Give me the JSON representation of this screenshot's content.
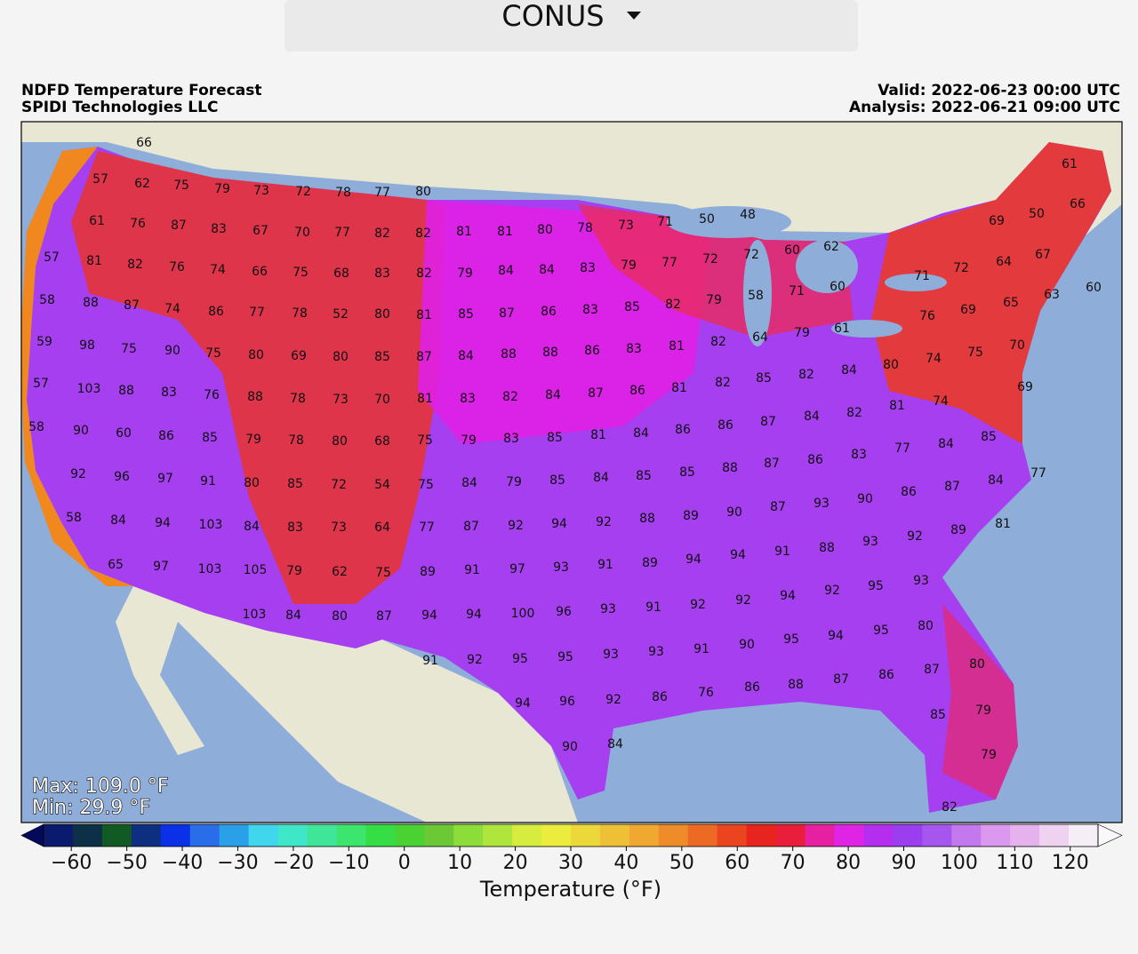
{
  "header": {
    "region": "CONUS"
  },
  "title": {
    "left_1": "NDFD Temperature Forecast",
    "left_2": "SPIDI Technologies LLC",
    "right_1": "Valid: 2022-06-23 00:00 UTC",
    "right_2": "Analysis: 2022-06-21 09:00 UTC"
  },
  "stats": {
    "max": "Max: 109.0 °F",
    "min": "Min: 29.9 °F"
  },
  "colorbar": {
    "label": "Temperature (°F)",
    "lim": [
      -65,
      125
    ],
    "ticks": [
      -60,
      -50,
      -40,
      -30,
      -20,
      -10,
      0,
      10,
      20,
      30,
      40,
      50,
      60,
      70,
      80,
      90,
      100,
      110,
      120
    ],
    "ticks_text": [
      "−60",
      "−50",
      "−40",
      "−30",
      "−20",
      "−10"
    ]
  },
  "map": {
    "labels": [
      66,
      57,
      62,
      75,
      79,
      73,
      72,
      78,
      77,
      80,
      61,
      76,
      87,
      83,
      67,
      70,
      77,
      82,
      82,
      81,
      81,
      80,
      78,
      73,
      71,
      50,
      48,
      69,
      50,
      66,
      61,
      57,
      81,
      82,
      76,
      74,
      66,
      75,
      68,
      83,
      82,
      79,
      84,
      84,
      83,
      79,
      77,
      72,
      72,
      60,
      62,
      64,
      72,
      71,
      67,
      58,
      88,
      87,
      74,
      86,
      77,
      78,
      52,
      80,
      81,
      85,
      87,
      86,
      83,
      85,
      82,
      79,
      58,
      71,
      60,
      65,
      69,
      76,
      63,
      60,
      59,
      98,
      75,
      90,
      75,
      80,
      69,
      80,
      85,
      87,
      84,
      88,
      88,
      86,
      83,
      81,
      82,
      64,
      79,
      61,
      70,
      75,
      74,
      80,
      57,
      103,
      88,
      83,
      76,
      88,
      78,
      73,
      70,
      81,
      83,
      82,
      84,
      87,
      86,
      81,
      82,
      85,
      82,
      84,
      69,
      74,
      81,
      82,
      84,
      58,
      90,
      60,
      86,
      85,
      79,
      78,
      80,
      68,
      75,
      79,
      83,
      85,
      81,
      84,
      86,
      86,
      87,
      83,
      86,
      87,
      77,
      84,
      85,
      92,
      96,
      97,
      91,
      80,
      85,
      72,
      54,
      75,
      84,
      79,
      85,
      84,
      85,
      85,
      88,
      84,
      77,
      87,
      86,
      90,
      93,
      87,
      90,
      58,
      84,
      94,
      103,
      84,
      83,
      73,
      64,
      77,
      87,
      92,
      94,
      92,
      88,
      89,
      89,
      92,
      93,
      88,
      91,
      94,
      81,
      65,
      97,
      103,
      105,
      79,
      62,
      75,
      89,
      91,
      97,
      93,
      91,
      89,
      94,
      93,
      95,
      92,
      94,
      92,
      92,
      91,
      103,
      84,
      80,
      87,
      94,
      94,
      100,
      96,
      93,
      80,
      95,
      94,
      95,
      90,
      91,
      93,
      91,
      92,
      95,
      95,
      93,
      80,
      87,
      86,
      87,
      88,
      86,
      76,
      86,
      92,
      96,
      94,
      79,
      85,
      84,
      90,
      79,
      82
    ]
  }
}
